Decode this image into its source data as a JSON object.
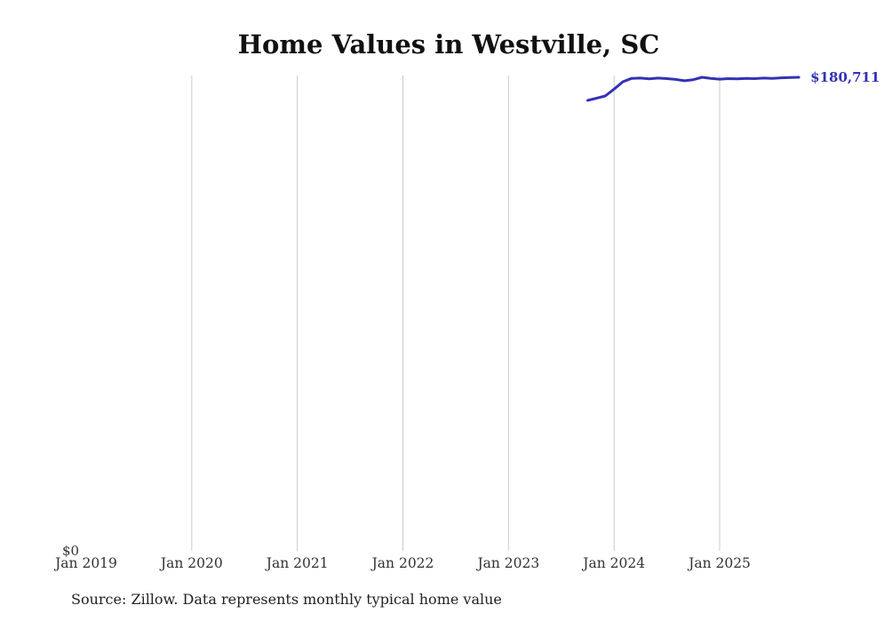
{
  "chart": {
    "title": "Home Values in Westville, SC",
    "source_note": "Source: Zillow. Data represents monthly typical home value",
    "end_label": "$180,711",
    "colors": {
      "line": "#3232b4",
      "label": "#3232b4",
      "grid": "#cccccc"
    }
  },
  "chart_data": {
    "type": "line",
    "title": "Home Values in Westville, SC",
    "xlabel": "",
    "ylabel": "",
    "x_ticks": [
      "Jan 2019",
      "Jan 2020",
      "Jan 2021",
      "Jan 2022",
      "Jan 2023",
      "Jan 2024",
      "Jan 2025"
    ],
    "y_axis": {
      "min": 0,
      "min_label": "$0"
    },
    "grid": "vertical-only",
    "legend": "none",
    "annotations": [
      {
        "text": "$180,711",
        "position": "line-end"
      }
    ],
    "series": [
      {
        "name": "Monthly typical home value",
        "points": [
          [
            "2023-10",
            171900
          ],
          [
            "2023-11",
            172700
          ],
          [
            "2023-12",
            173600
          ],
          [
            "2024-01",
            176200
          ],
          [
            "2024-02",
            179000
          ],
          [
            "2024-03",
            180300
          ],
          [
            "2024-04",
            180400
          ],
          [
            "2024-05",
            180100
          ],
          [
            "2024-06",
            180400
          ],
          [
            "2024-07",
            180200
          ],
          [
            "2024-08",
            179900
          ],
          [
            "2024-09",
            179400
          ],
          [
            "2024-10",
            179800
          ],
          [
            "2024-11",
            180700
          ],
          [
            "2024-12",
            180300
          ],
          [
            "2025-01",
            180000
          ],
          [
            "2025-02",
            180200
          ],
          [
            "2025-03",
            180100
          ],
          [
            "2025-04",
            180300
          ],
          [
            "2025-05",
            180200
          ],
          [
            "2025-06",
            180400
          ],
          [
            "2025-07",
            180300
          ],
          [
            "2025-08",
            180500
          ],
          [
            "2025-09",
            180600
          ],
          [
            "2025-10",
            180711
          ]
        ]
      }
    ]
  }
}
